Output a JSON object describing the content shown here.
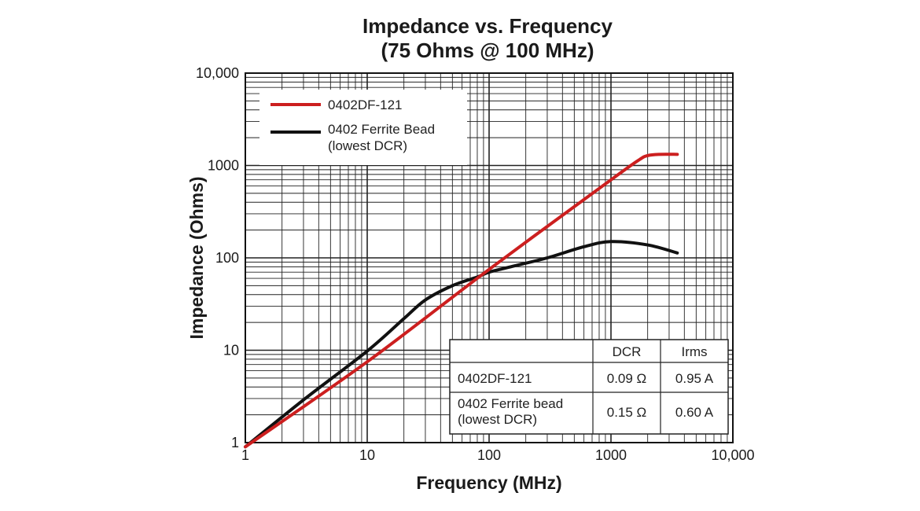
{
  "chart_data": {
    "type": "line",
    "title": "Impedance vs. Frequency",
    "subtitle": "(75 Ohms @ 100 MHz)",
    "xlabel": "Frequency (MHz)",
    "ylabel": "Impedance (Ohms)",
    "xscale": "log",
    "yscale": "log",
    "xlim": [
      1,
      10000
    ],
    "ylim": [
      1,
      10000
    ],
    "grid": true,
    "x_tick_labels": [
      "1",
      "10",
      "100",
      "1000",
      "10,000"
    ],
    "y_tick_labels": [
      "1",
      "10",
      "100",
      "1000",
      "10,000"
    ],
    "series": [
      {
        "name": "0402DF-121",
        "color": "#cc1f1f",
        "x": [
          1,
          10,
          100,
          1000,
          1700,
          2000,
          2500,
          3500
        ],
        "y": [
          0.9,
          7.5,
          75,
          700,
          1150,
          1280,
          1320,
          1320
        ]
      },
      {
        "name": "0402 Ferrite Bead",
        "name_line2": "(lowest DCR)",
        "color": "#111111",
        "x": [
          1,
          3,
          10,
          20,
          30,
          50,
          80,
          100,
          150,
          300,
          600,
          1000,
          2000,
          3500
        ],
        "y": [
          0.9,
          2.9,
          9.8,
          22,
          35,
          50,
          62,
          70,
          80,
          100,
          132,
          150,
          138,
          113
        ]
      }
    ],
    "legend_position": "top-left",
    "table": {
      "headers": [
        "",
        "DCR",
        "Irms"
      ],
      "rows": [
        {
          "part": "0402DF-121",
          "part_line2": "",
          "dcr": "0.09 Ω",
          "irms": "0.95 A",
          "color": "#cc1f1f"
        },
        {
          "part": "0402 Ferrite bead",
          "part_line2": "(lowest DCR)",
          "dcr": "0.15 Ω",
          "irms": "0.60 A",
          "color": "#222222"
        }
      ]
    }
  }
}
